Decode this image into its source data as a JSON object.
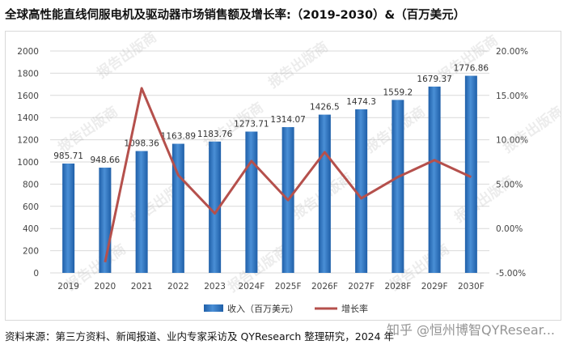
{
  "title": "全球高性能直线伺服电机及驱动器市场销售额及增长率:（2019-2030）&（百万美元）",
  "footer": "资料来源：第三方资料、新闻报道、业内专家采访及 QYResearch 整理研究，2024 年",
  "site_watermark": "知乎 @恒州博智QYResear...",
  "watermark_text": "报告出版商",
  "colors": {
    "bar": "#2e75c0",
    "bar_dark": "#1f5fa8",
    "line": "#b5504c",
    "grid": "#d9d9d9",
    "text": "#444444"
  },
  "chart_data": {
    "type": "bar",
    "categories": [
      "2019",
      "2020",
      "2021",
      "2022",
      "2023",
      "2024F",
      "2025F",
      "2026F",
      "2027F",
      "2028F",
      "2029F",
      "2030F"
    ],
    "series": [
      {
        "name": "收入（百万美元）",
        "type": "bar",
        "axis": "left",
        "values": [
          985.71,
          948.66,
          1098.36,
          1163.89,
          1183.76,
          1273.71,
          1314.07,
          1426.5,
          1474.3,
          1559.2,
          1679.37,
          1776.86
        ],
        "labels": [
          "985.71",
          "948.66",
          "1098.36",
          "1163.89",
          "1183.76",
          "1273.71",
          "1314.07",
          "1426.5",
          "1474.3",
          "1559.2",
          "1679.37",
          "1776.86"
        ]
      },
      {
        "name": "增长率",
        "type": "line",
        "axis": "right",
        "values": [
          null,
          -3.8,
          15.8,
          6.0,
          1.7,
          7.6,
          3.2,
          8.6,
          3.4,
          5.8,
          7.7,
          5.8
        ]
      }
    ],
    "ylim_left": [
      0,
      2000
    ],
    "yticks_left": [
      "0",
      "200",
      "400",
      "600",
      "800",
      "1000",
      "1200",
      "1400",
      "1600",
      "1800",
      "2000"
    ],
    "ylim_right": [
      -5,
      20
    ],
    "yticks_right": [
      "-5.00%",
      "0.00%",
      "5.00%",
      "10.00%",
      "15.00%",
      "20.00%"
    ],
    "grid": true,
    "legend": "bottom"
  }
}
